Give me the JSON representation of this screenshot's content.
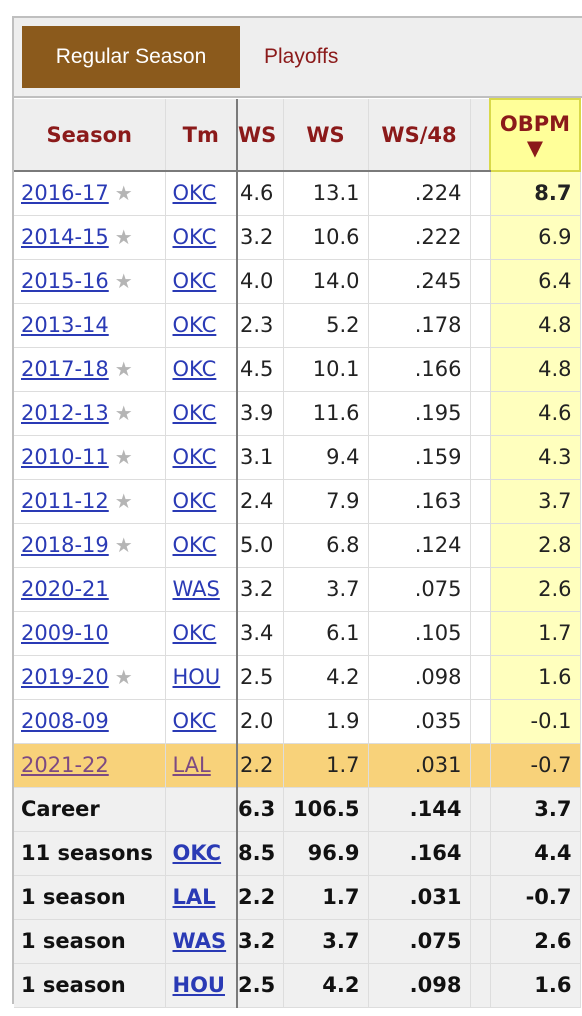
{
  "tabs": {
    "regular": "Regular Season",
    "playoffs": "Playoffs"
  },
  "headers": {
    "season": "Season",
    "team": "Tm",
    "ws_a": "WS",
    "ws_b": "WS",
    "ws48": "WS/48",
    "obpm": "OBPM",
    "sort_arrow": "▼"
  },
  "star": "★",
  "rows": [
    {
      "season": "2016-17",
      "star": true,
      "team": "OKC",
      "ws_a": "4.6",
      "ws_b": "13.1",
      "ws48": ".224",
      "obpm": "8.7"
    },
    {
      "season": "2014-15",
      "star": true,
      "team": "OKC",
      "ws_a": "3.2",
      "ws_b": "10.6",
      "ws48": ".222",
      "obpm": "6.9"
    },
    {
      "season": "2015-16",
      "star": true,
      "team": "OKC",
      "ws_a": "4.0",
      "ws_b": "14.0",
      "ws48": ".245",
      "obpm": "6.4"
    },
    {
      "season": "2013-14",
      "star": false,
      "team": "OKC",
      "ws_a": "2.3",
      "ws_b": "5.2",
      "ws48": ".178",
      "obpm": "4.8"
    },
    {
      "season": "2017-18",
      "star": true,
      "team": "OKC",
      "ws_a": "4.5",
      "ws_b": "10.1",
      "ws48": ".166",
      "obpm": "4.8"
    },
    {
      "season": "2012-13",
      "star": true,
      "team": "OKC",
      "ws_a": "3.9",
      "ws_b": "11.6",
      "ws48": ".195",
      "obpm": "4.6"
    },
    {
      "season": "2010-11",
      "star": true,
      "team": "OKC",
      "ws_a": "3.1",
      "ws_b": "9.4",
      "ws48": ".159",
      "obpm": "4.3"
    },
    {
      "season": "2011-12",
      "star": true,
      "team": "OKC",
      "ws_a": "2.4",
      "ws_b": "7.9",
      "ws48": ".163",
      "obpm": "3.7"
    },
    {
      "season": "2018-19",
      "star": true,
      "team": "OKC",
      "ws_a": "5.0",
      "ws_b": "6.8",
      "ws48": ".124",
      "obpm": "2.8"
    },
    {
      "season": "2020-21",
      "star": false,
      "team": "WAS",
      "ws_a": "3.2",
      "ws_b": "3.7",
      "ws48": ".075",
      "obpm": "2.6"
    },
    {
      "season": "2009-10",
      "star": false,
      "team": "OKC",
      "ws_a": "3.4",
      "ws_b": "6.1",
      "ws48": ".105",
      "obpm": "1.7"
    },
    {
      "season": "2019-20",
      "star": true,
      "team": "HOU",
      "ws_a": "2.5",
      "ws_b": "4.2",
      "ws48": ".098",
      "obpm": "1.6"
    },
    {
      "season": "2008-09",
      "star": false,
      "team": "OKC",
      "ws_a": "2.0",
      "ws_b": "1.9",
      "ws48": ".035",
      "obpm": "-0.1"
    },
    {
      "season": "2021-22",
      "star": false,
      "team": "LAL",
      "ws_a": "2.2",
      "ws_b": "1.7",
      "ws48": ".031",
      "obpm": "-0.7",
      "highlight": true
    }
  ],
  "totals": [
    {
      "label": "Career",
      "team": "",
      "ws_a": "6.3",
      "ws_b": "106.5",
      "ws48": ".144",
      "obpm": "3.7"
    },
    {
      "label": "11 seasons",
      "team": "OKC",
      "ws_a": "8.5",
      "ws_b": "96.9",
      "ws48": ".164",
      "obpm": "4.4"
    },
    {
      "label": "1 season",
      "team": "LAL",
      "ws_a": "2.2",
      "ws_b": "1.7",
      "ws48": ".031",
      "obpm": "-0.7"
    },
    {
      "label": "1 season",
      "team": "WAS",
      "ws_a": "3.2",
      "ws_b": "3.7",
      "ws48": ".075",
      "obpm": "2.6"
    },
    {
      "label": "1 season",
      "team": "HOU",
      "ws_a": "2.5",
      "ws_b": "4.2",
      "ws48": ".098",
      "obpm": "1.6"
    }
  ]
}
